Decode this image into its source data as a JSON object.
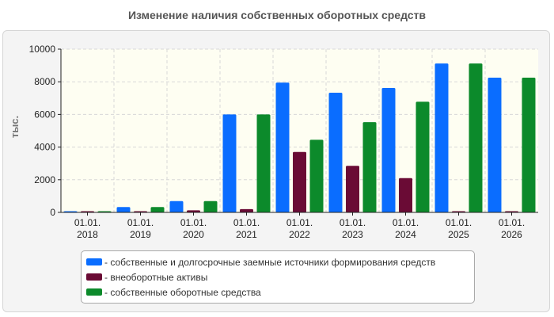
{
  "chart_data": {
    "type": "bar",
    "title": "Изменение наличия собственных оборотных средств",
    "ylabel": "тыс.",
    "ylim": [
      0,
      10000
    ],
    "yticks": [
      0,
      2000,
      4000,
      6000,
      8000,
      10000
    ],
    "grid": true,
    "legend_position": "bottom",
    "categories": [
      {
        "line1": "01.01.",
        "line2": "2018"
      },
      {
        "line1": "01.01.",
        "line2": "2019"
      },
      {
        "line1": "01.01.",
        "line2": "2020"
      },
      {
        "line1": "01.01.",
        "line2": "2021"
      },
      {
        "line1": "01.01.",
        "line2": "2022"
      },
      {
        "line1": "01.01.",
        "line2": "2023"
      },
      {
        "line1": "01.01.",
        "line2": "2024"
      },
      {
        "line1": "01.01.",
        "line2": "2025"
      },
      {
        "line1": "01.01.",
        "line2": "2026"
      }
    ],
    "series": [
      {
        "name": "- собственные и долгосрочные заемные источники формирования средств",
        "color": "#0a6dff",
        "values": [
          60,
          330,
          690,
          6000,
          7950,
          7330,
          7620,
          9120,
          8250
        ]
      },
      {
        "name": "- внеоборотные активы",
        "color": "#6a0b35",
        "values": [
          30,
          50,
          130,
          200,
          3700,
          2850,
          2100,
          30,
          40
        ]
      },
      {
        "name": "- собственные оборотные средства",
        "color": "#0c8a2b",
        "values": [
          40,
          330,
          690,
          6000,
          4450,
          5530,
          6780,
          9120,
          8250
        ]
      }
    ]
  }
}
